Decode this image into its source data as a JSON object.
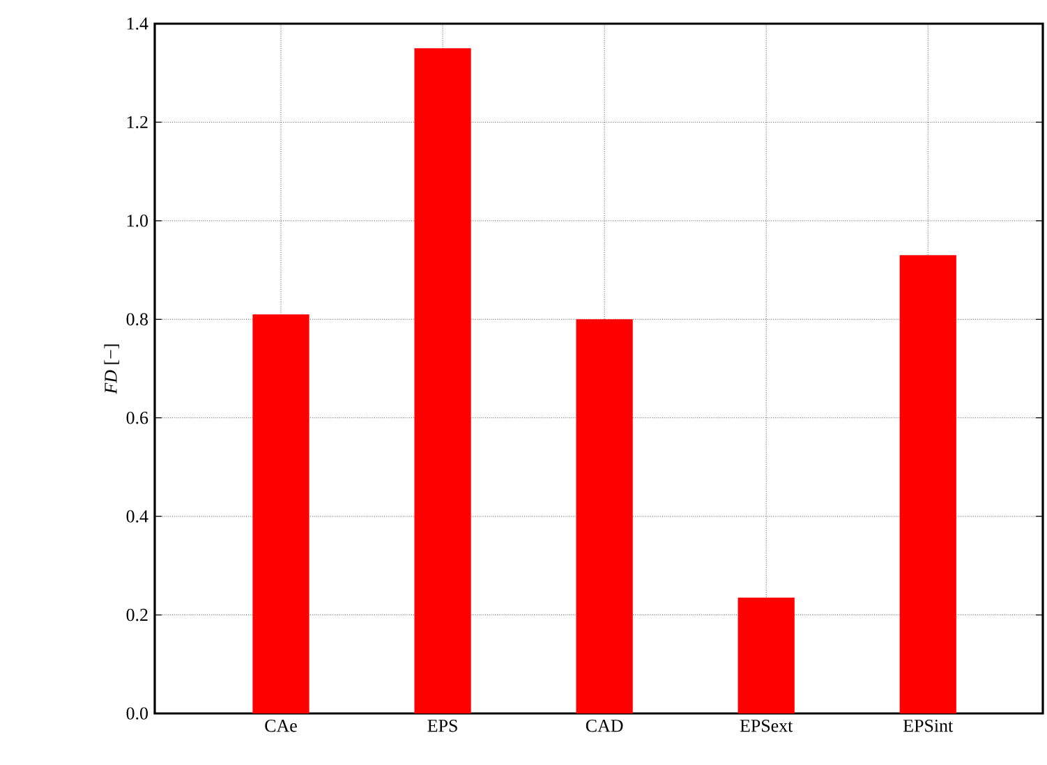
{
  "chart_data": {
    "type": "bar",
    "ylabel": "*FD* [−]",
    "categories": [
      "CAe",
      "EPS",
      "CAD",
      "EPSext",
      "EPSint"
    ],
    "values": [
      0.81,
      1.35,
      0.8,
      0.235,
      0.93
    ],
    "color": "#ff0000",
    "ylim": [
      0,
      1.4
    ],
    "yticks": [
      {
        "value": 0,
        "label": "0.0"
      },
      {
        "value": 0.2,
        "label": "0.2"
      },
      {
        "value": 0.4,
        "label": "0.4"
      },
      {
        "value": 0.6,
        "label": "0.6"
      },
      {
        "value": 0.8,
        "label": "0.8"
      },
      {
        "value": 1.0,
        "label": "1.0"
      },
      {
        "value": 1.2,
        "label": "1.2"
      },
      {
        "value": 1.4,
        "label": "1.4"
      }
    ],
    "grid": true
  }
}
